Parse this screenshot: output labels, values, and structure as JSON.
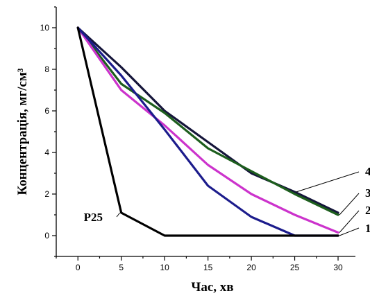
{
  "chart_data": {
    "type": "line",
    "xlabel": "Час, хв",
    "ylabel": "Концентрація, мг/см³",
    "xlim": [
      -2.5,
      32
    ],
    "ylim": [
      -1,
      11
    ],
    "x_ticks": [
      "0",
      "5",
      "10",
      "15",
      "20",
      "25",
      "30"
    ],
    "y_ticks": [
      "0",
      "2",
      "4",
      "6",
      "8",
      "10"
    ],
    "grid": false,
    "series": [
      {
        "name": "P25",
        "color": "#000000",
        "x": [
          0,
          5,
          10,
          15,
          20,
          25,
          30
        ],
        "values": [
          10,
          1.1,
          0,
          0,
          0,
          0,
          0
        ]
      },
      {
        "name": "1",
        "color": "#1c1c8c",
        "x": [
          0,
          5,
          10,
          15,
          20,
          25,
          30
        ],
        "values": [
          10,
          7.7,
          5.1,
          2.4,
          0.9,
          0,
          0
        ]
      },
      {
        "name": "2",
        "color": "#cc33cc",
        "x": [
          0,
          5,
          10,
          15,
          20,
          25,
          30
        ],
        "values": [
          10,
          7.0,
          5.3,
          3.4,
          2.0,
          1.0,
          0.15
        ]
      },
      {
        "name": "3",
        "color": "#1d5e1d",
        "x": [
          0,
          5,
          10,
          15,
          20,
          25,
          30
        ],
        "values": [
          10,
          7.3,
          5.9,
          4.2,
          3.1,
          2.0,
          1.0
        ]
      },
      {
        "name": "4",
        "color": "#15153a",
        "x": [
          0,
          5,
          10,
          15,
          20,
          25,
          30
        ],
        "values": [
          10,
          8.1,
          6.0,
          4.5,
          3.0,
          2.1,
          1.1
        ]
      }
    ]
  }
}
